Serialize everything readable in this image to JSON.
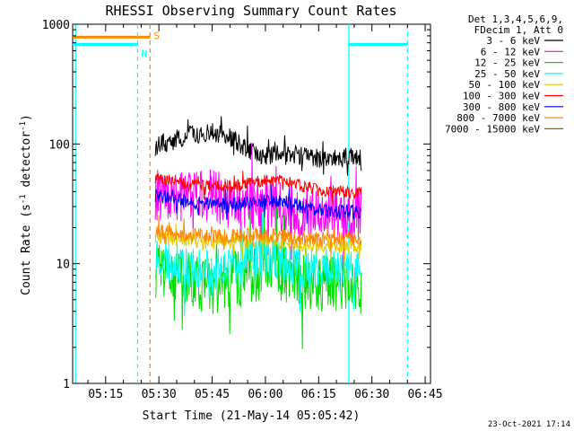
{
  "chart_data": {
    "type": "line",
    "title": "RHESSI Observing Summary Count Rates",
    "xlabel": "Start Time (21-May-14 05:05:42)",
    "ylabel_main": "Count Rate (s",
    "ylabel_sup1": "-1",
    "ylabel_mid": " detector",
    "ylabel_sup2": "-1",
    "ylabel_end": ")",
    "yscale": "log",
    "ylim": [
      1,
      1000
    ],
    "xlim": [
      "05:05:42",
      "06:46:30"
    ],
    "xticks": [
      "05:15",
      "05:30",
      "05:45",
      "06:00",
      "06:15",
      "06:30",
      "06:45"
    ],
    "yticks": [
      "1",
      "10",
      "100",
      "1000"
    ],
    "legend_header": [
      "Det 1,3,4,5,6,9,",
      "FDecim 1, Att 0"
    ],
    "legend_placement": "right",
    "timestamp": "23-Oct-2021 17:14",
    "series": [
      {
        "name": "3 - 6 keV",
        "color": "#000000",
        "x": [
          "05:29",
          "05:35",
          "05:40",
          "05:45",
          "05:50",
          "05:55",
          "06:00",
          "06:05",
          "06:10",
          "06:15",
          "06:20",
          "06:25",
          "06:27"
        ],
        "y": [
          95,
          110,
          120,
          125,
          115,
          90,
          78,
          85,
          80,
          76,
          77,
          78,
          75
        ]
      },
      {
        "name": "6 - 12 keV",
        "color": "#ff00ff",
        "x": [
          "05:29",
          "05:35",
          "05:40",
          "05:45",
          "05:50",
          "05:55",
          "06:00",
          "06:05",
          "06:10",
          "06:15",
          "06:20",
          "06:25",
          "06:27"
        ],
        "y": [
          38,
          37,
          35,
          38,
          32,
          30,
          31,
          29,
          28,
          27,
          27,
          26,
          26
        ]
      },
      {
        "name": "12 - 25 keV",
        "color": "#00dd00",
        "x": [
          "05:29",
          "05:35",
          "05:40",
          "05:45",
          "05:50",
          "05:55",
          "06:00",
          "06:05",
          "06:10",
          "06:15",
          "06:20",
          "06:25",
          "06:27"
        ],
        "y": [
          9,
          8,
          7,
          6.5,
          7,
          8,
          9,
          8.5,
          7.5,
          7,
          6.8,
          6.5,
          6.5
        ]
      },
      {
        "name": "25 - 50 keV",
        "color": "#00ffff",
        "x": [
          "05:29",
          "05:35",
          "05:40",
          "05:45",
          "05:50",
          "05:55",
          "06:00",
          "06:05",
          "06:10",
          "06:15",
          "06:20",
          "06:25",
          "06:27"
        ],
        "y": [
          11,
          10,
          9,
          8.5,
          9.5,
          10.5,
          11.5,
          10.5,
          9.5,
          9,
          8.8,
          8.5,
          8.5
        ]
      },
      {
        "name": "50 - 100 keV",
        "color": "#e6c800",
        "x": [
          "05:29",
          "05:35",
          "05:40",
          "05:45",
          "05:50",
          "05:55",
          "06:00",
          "06:05",
          "06:10",
          "06:15",
          "06:20",
          "06:25",
          "06:27"
        ],
        "y": [
          17,
          16,
          15.5,
          15,
          15,
          15,
          15.5,
          15,
          14.5,
          14.5,
          14,
          14,
          14
        ]
      },
      {
        "name": "100 - 300 keV",
        "color": "#ff0000",
        "x": [
          "05:29",
          "05:35",
          "05:40",
          "05:45",
          "05:50",
          "05:55",
          "06:00",
          "06:05",
          "06:10",
          "06:15",
          "06:20",
          "06:25",
          "06:27"
        ],
        "y": [
          52,
          48,
          45,
          44,
          44,
          47,
          50,
          49,
          45,
          41,
          40,
          39,
          39
        ]
      },
      {
        "name": "300 - 800 keV",
        "color": "#0000ff",
        "x": [
          "05:29",
          "05:35",
          "05:40",
          "05:45",
          "05:50",
          "05:55",
          "06:00",
          "06:05",
          "06:10",
          "06:15",
          "06:20",
          "06:25",
          "06:27"
        ],
        "y": [
          37,
          34,
          32,
          31,
          31,
          32,
          34,
          33,
          30,
          28,
          27,
          27,
          26
        ]
      },
      {
        "name": "800 - 7000 keV",
        "color": "#ff8800",
        "x": [
          "05:29",
          "05:35",
          "05:40",
          "05:45",
          "05:50",
          "05:55",
          "06:00",
          "06:05",
          "06:10",
          "06:15",
          "06:20",
          "06:25",
          "06:27"
        ],
        "y": [
          19,
          18,
          17.5,
          17,
          17,
          17.5,
          17.5,
          17,
          16.5,
          16,
          16,
          16,
          16
        ]
      },
      {
        "name": "7000 - 15000 keV",
        "color": "#886600",
        "x": [],
        "y": []
      }
    ],
    "markers": [
      {
        "label": "S",
        "color": "#ff8800",
        "time": "05:27:30",
        "bar_value": 780,
        "bar_from": "05:05:42",
        "bar_to": "05:27:30"
      },
      {
        "label": "N",
        "color": "#00ffff",
        "time": "05:24:00",
        "bar_value": 680,
        "bar_from": "05:05:42",
        "bar_to": "05:24:00"
      },
      {
        "label": "",
        "color": "#00ffff",
        "time": "06:40:00",
        "bar_value": 680,
        "bar_from": "06:23:30",
        "bar_to": "06:40:00"
      }
    ],
    "solid_lines": [
      {
        "color": "#00ffff",
        "time": "05:06:30"
      },
      {
        "color": "#00ffff",
        "time": "06:23:30"
      }
    ]
  }
}
